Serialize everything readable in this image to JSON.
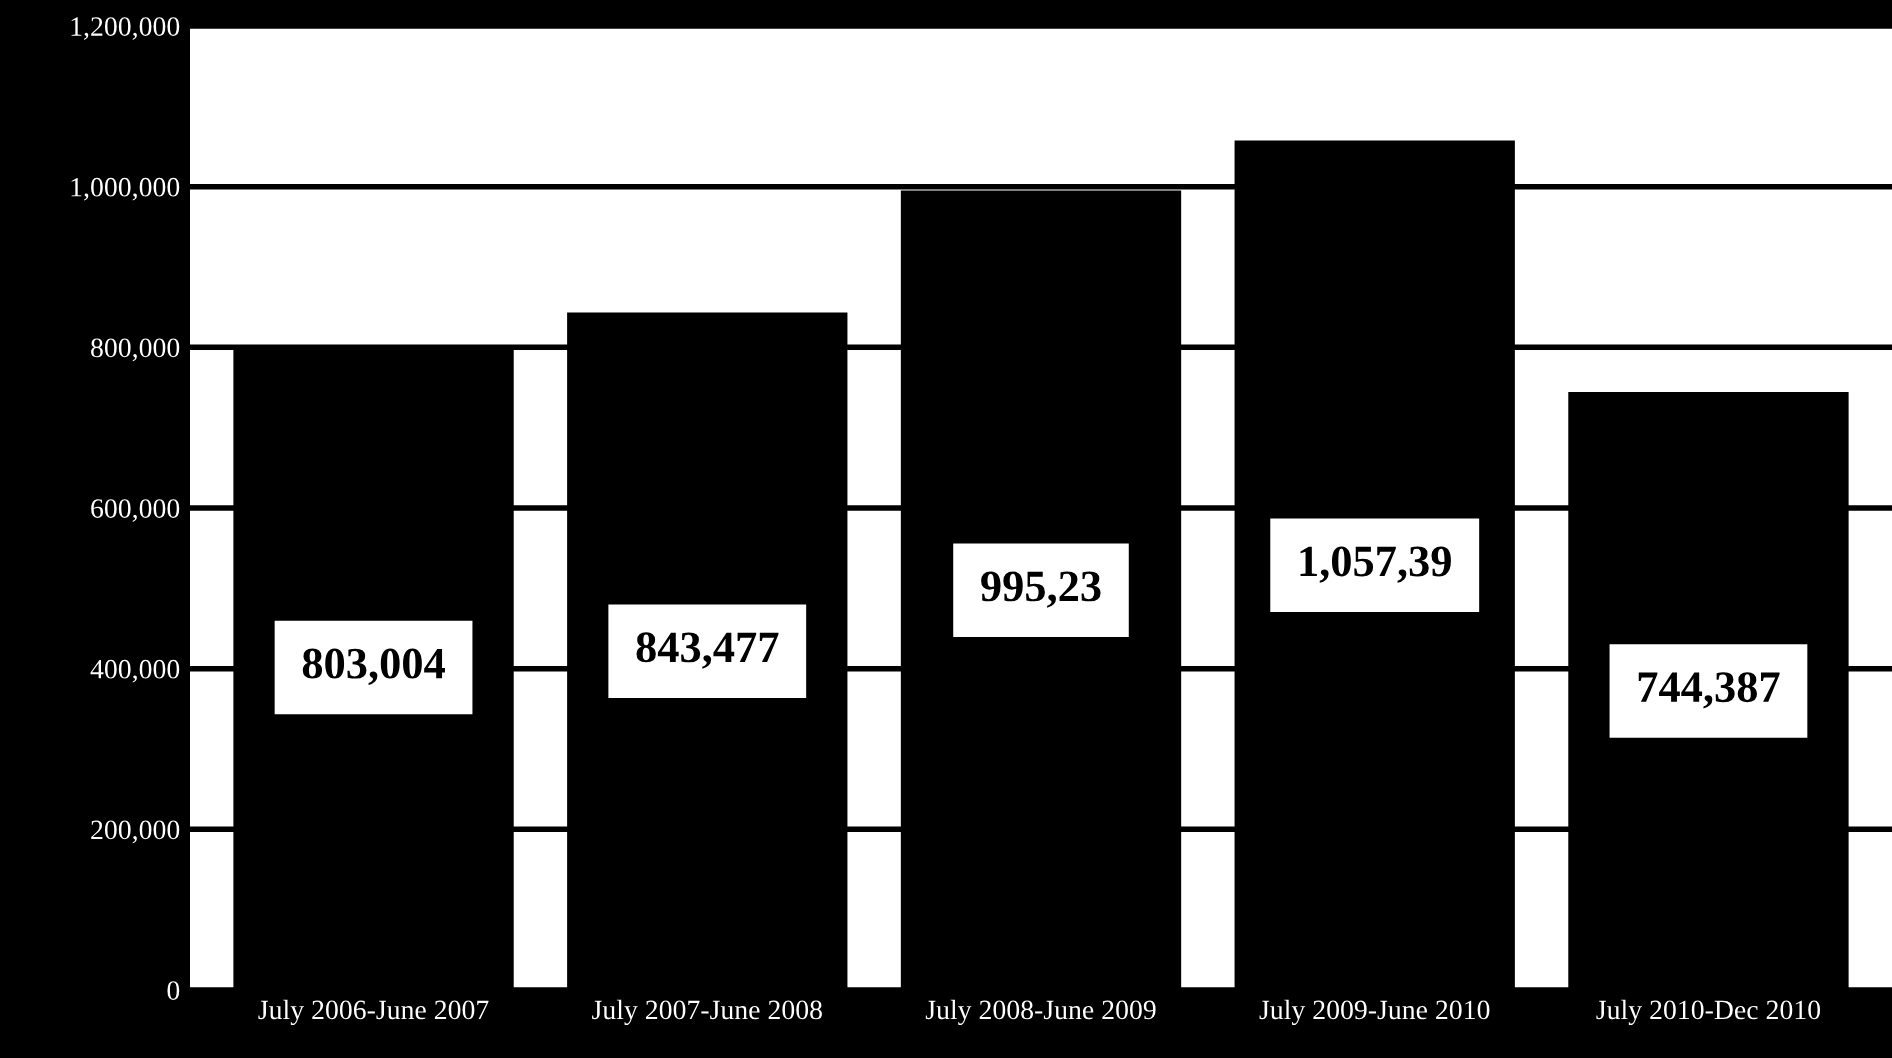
{
  "chart_data": {
    "type": "bar",
    "categories": [
      "July 2006-June 2007",
      "July 2007-June 2008",
      "July 2008-June 2009",
      "July 2009-June 2010",
      "July 2010-Dec 2010"
    ],
    "values": [
      803004,
      843477,
      995230,
      1057390,
      744387
    ],
    "value_labels": [
      "803,004",
      "843,477",
      null,
      null,
      "744,387"
    ],
    "annotations": [
      "995,23",
      "1,057,39"
    ],
    "color": "#000000",
    "ylim": [
      0,
      1200000
    ],
    "yticks": [
      {
        "value": 0,
        "label": "0"
      },
      {
        "value": 200000,
        "label": "200,000"
      },
      {
        "value": 400000,
        "label": "400,000"
      },
      {
        "value": 600000,
        "label": "600,000"
      },
      {
        "value": 800000,
        "label": "800,000"
      },
      {
        "value": 1000000,
        "label": "1,000,000"
      },
      {
        "value": 1200000,
        "label": "1,200,000"
      }
    ],
    "grid": "y"
  }
}
